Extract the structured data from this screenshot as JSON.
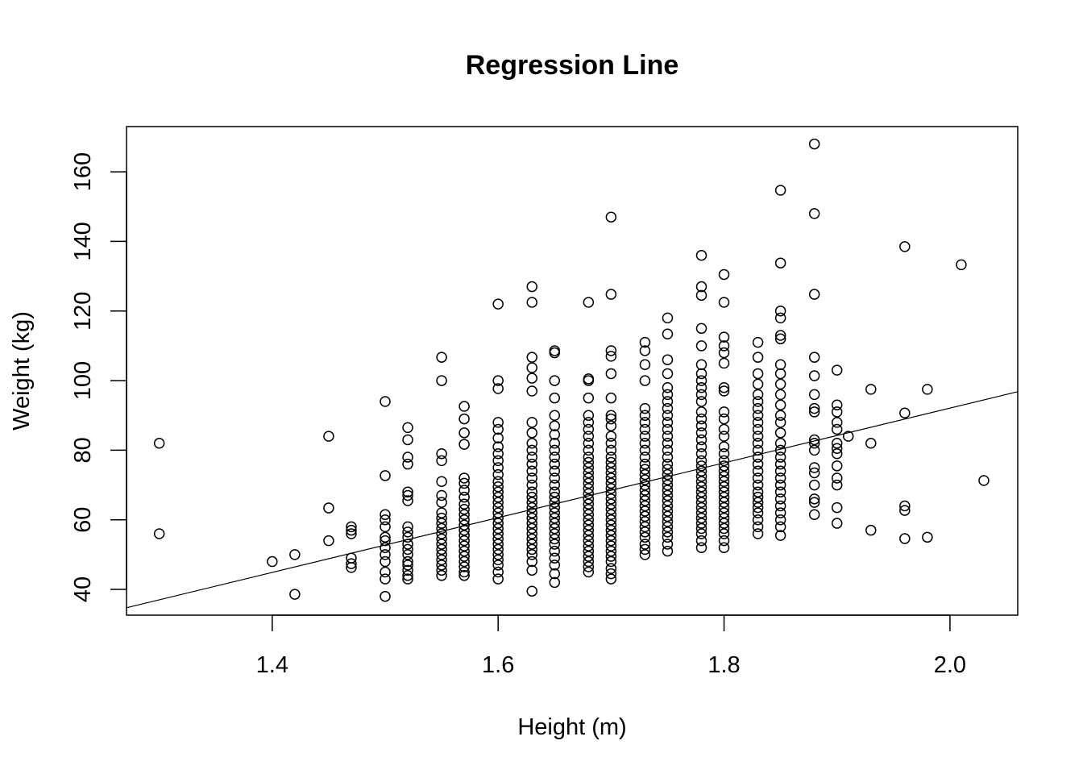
{
  "chart_data": {
    "type": "scatter",
    "title": "Regression Line",
    "xlabel": "Height (m)",
    "ylabel": "Weight (kg)",
    "xlim": [
      1.271,
      2.06
    ],
    "ylim": [
      32.6,
      173
    ],
    "x_ticks": [
      1.4,
      1.6,
      1.8,
      2.0
    ],
    "x_tick_labels": [
      "1.4",
      "1.6",
      "1.8",
      "2.0"
    ],
    "y_ticks": [
      40,
      60,
      80,
      100,
      120,
      140,
      160
    ],
    "y_tick_labels": [
      "40",
      "60",
      "80",
      "100",
      "120",
      "140",
      "160"
    ],
    "grid": false,
    "regression_line": {
      "intercept": -65.3,
      "slope": 78.7
    },
    "columns": [
      {
        "x": 1.3,
        "y": [
          82,
          56
        ]
      },
      {
        "x": 1.4,
        "y": [
          48
        ]
      },
      {
        "x": 1.42,
        "y": [
          50,
          38.6
        ]
      },
      {
        "x": 1.45,
        "y": [
          84,
          63.4,
          54
        ]
      },
      {
        "x": 1.47,
        "y": [
          58,
          57,
          56,
          49,
          47.4,
          46.3
        ]
      },
      {
        "x": 1.5,
        "y": [
          94,
          72.7,
          61.5,
          60,
          58,
          55,
          54,
          52,
          50,
          48,
          45,
          43,
          38
        ]
      },
      {
        "x": 1.52,
        "y": [
          86.5,
          83,
          78,
          76,
          68,
          67,
          65.5,
          58,
          56.5,
          55,
          53,
          51.5,
          50,
          48,
          47,
          45.5,
          44,
          43
        ]
      },
      {
        "x": 1.55,
        "y": [
          106.7,
          100,
          79,
          77,
          71,
          67,
          65,
          62,
          60.5,
          59,
          57.5,
          56,
          54.5,
          53,
          51.5,
          50,
          48.5,
          47,
          45.5,
          44
        ]
      },
      {
        "x": 1.57,
        "y": [
          92.6,
          89,
          85,
          81.7,
          72,
          70.5,
          68.5,
          66.5,
          64.5,
          63,
          61.5,
          60,
          58.5,
          57,
          55.5,
          54,
          52.5,
          51,
          49.5,
          48,
          46.5,
          45,
          44
        ]
      },
      {
        "x": 1.6,
        "y": [
          122,
          100,
          97.7,
          88,
          86,
          83.5,
          81,
          79,
          77,
          75,
          73,
          71,
          69.5,
          68,
          66.5,
          65,
          63.5,
          62,
          60.5,
          59,
          57.5,
          56,
          54.5,
          53,
          51.5,
          50,
          48.5,
          47,
          45,
          43
        ]
      },
      {
        "x": 1.63,
        "y": [
          127,
          122.5,
          106.7,
          103.7,
          100.7,
          97,
          88,
          85,
          82,
          80,
          78,
          76,
          74,
          72,
          70,
          68,
          66.5,
          65,
          63.5,
          62,
          60.5,
          59,
          57.5,
          56,
          54.5,
          53,
          51.5,
          50,
          48,
          45.5,
          39.5
        ]
      },
      {
        "x": 1.65,
        "y": [
          108.6,
          108,
          100,
          95,
          90,
          87,
          84.5,
          82,
          80,
          78,
          76,
          74,
          72,
          70,
          68,
          66.5,
          65,
          63.5,
          62,
          60.5,
          59,
          57.5,
          56,
          54.5,
          53,
          51,
          49,
          47,
          44.5,
          42
        ]
      },
      {
        "x": 1.68,
        "y": [
          122.5,
          100.5,
          100,
          95,
          90,
          88,
          86,
          84,
          82,
          80,
          78,
          76.5,
          75,
          73.5,
          72,
          70.5,
          69,
          67.5,
          66,
          64.5,
          63,
          61.5,
          60,
          58.5,
          57,
          55.5,
          54,
          52.5,
          51,
          49.5,
          48,
          46.5,
          45
        ]
      },
      {
        "x": 1.7,
        "y": [
          147,
          124.8,
          108.6,
          107,
          102,
          95,
          90,
          89,
          87,
          84,
          82,
          80,
          78,
          76.5,
          75,
          73.5,
          72,
          70.5,
          69,
          67.5,
          66,
          64.5,
          63,
          61.5,
          60,
          58.5,
          57,
          55.5,
          54,
          52.5,
          51,
          49.5,
          48,
          46,
          44.5,
          43
        ]
      },
      {
        "x": 1.73,
        "y": [
          111,
          108.6,
          104.6,
          100,
          92,
          90,
          88,
          86,
          84,
          82,
          80,
          78,
          76,
          74.5,
          73,
          71.5,
          70,
          68.5,
          67,
          65.5,
          64,
          62.5,
          61,
          59.5,
          58,
          56.5,
          55,
          53,
          51.5,
          50
        ]
      },
      {
        "x": 1.75,
        "y": [
          118,
          113.4,
          106,
          102,
          98,
          96,
          94,
          92,
          90,
          88,
          86,
          84,
          82,
          80,
          78,
          76,
          74.5,
          73,
          71.5,
          70,
          68.5,
          67,
          65.5,
          64,
          62.5,
          61,
          59.5,
          58,
          56.5,
          55,
          53,
          51
        ]
      },
      {
        "x": 1.78,
        "y": [
          136,
          127,
          124.5,
          115,
          110,
          104.6,
          102,
          100,
          98,
          96,
          94,
          91,
          89,
          87,
          85,
          83,
          81,
          79,
          77,
          75.5,
          74,
          72.5,
          71,
          69.5,
          68,
          66.5,
          65,
          63.5,
          62,
          60.5,
          59,
          57.5,
          56,
          54,
          52
        ]
      },
      {
        "x": 1.8,
        "y": [
          130.5,
          122.5,
          112.5,
          110,
          108,
          105,
          98,
          97,
          91,
          89,
          86,
          84,
          81,
          79,
          77,
          75.5,
          74,
          72.5,
          71,
          69.5,
          68,
          66.5,
          65,
          63.5,
          62,
          60.5,
          59,
          57.5,
          56,
          54,
          52
        ]
      },
      {
        "x": 1.83,
        "y": [
          111,
          106.7,
          102,
          99,
          96,
          94,
          92,
          90,
          88,
          86,
          84,
          82,
          80,
          78,
          76,
          74,
          72,
          70,
          68,
          66.5,
          65,
          63.5,
          62,
          60,
          58,
          56
        ]
      },
      {
        "x": 1.85,
        "y": [
          154.7,
          133.8,
          120,
          118,
          113,
          112,
          104.6,
          102,
          99,
          96,
          93,
          90,
          88,
          85,
          82,
          80,
          78,
          76,
          74,
          72,
          70,
          68,
          66,
          64,
          62,
          60,
          58,
          55.5
        ]
      },
      {
        "x": 1.88,
        "y": [
          168,
          148,
          124.8,
          106.7,
          101.4,
          96,
          92,
          91,
          83,
          82,
          80,
          75,
          73.5,
          70,
          66,
          65,
          61.5
        ]
      },
      {
        "x": 1.9,
        "y": [
          103,
          93,
          91,
          88,
          86,
          82,
          80.5,
          79,
          75.5,
          72,
          70,
          63.5,
          59
        ]
      },
      {
        "x": 1.91,
        "y": [
          84
        ]
      },
      {
        "x": 1.93,
        "y": [
          97.5,
          82,
          57
        ]
      },
      {
        "x": 1.96,
        "y": [
          138.5,
          90.7,
          64,
          62.7,
          54.6
        ]
      },
      {
        "x": 1.98,
        "y": [
          97.5,
          55
        ]
      },
      {
        "x": 2.01,
        "y": [
          133.3
        ]
      },
      {
        "x": 2.03,
        "y": [
          71.3
        ]
      }
    ]
  }
}
